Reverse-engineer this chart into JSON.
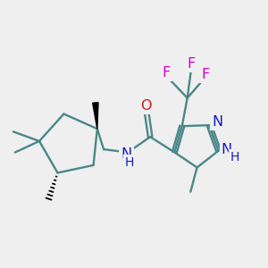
{
  "background_color": "#efefef",
  "bond_color": "#4a8888",
  "bond_width": 1.7,
  "atom_colors": {
    "N": "#1818cc",
    "O": "#cc1818",
    "F": "#cc00cc"
  },
  "font_size": 11.5,
  "font_size_small": 10.0
}
